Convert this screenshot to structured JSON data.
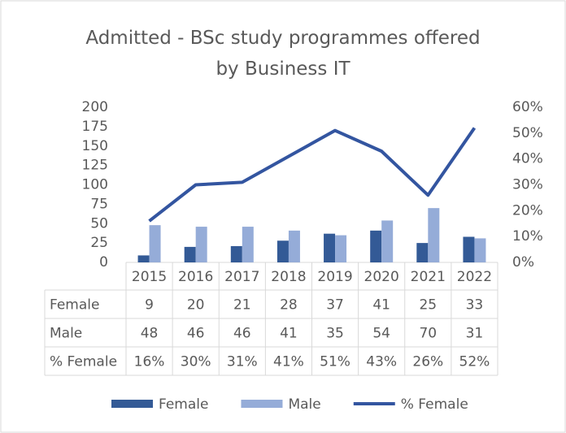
{
  "chart_data": {
    "type": "bar",
    "title": "Admitted - BSc study programmes offered by Business IT",
    "categories": [
      "2015",
      "2016",
      "2017",
      "2018",
      "2019",
      "2020",
      "2021",
      "2022"
    ],
    "series": [
      {
        "name": "Female",
        "type": "bar",
        "color": "#335a96",
        "values": [
          9,
          20,
          21,
          28,
          37,
          41,
          25,
          33
        ]
      },
      {
        "name": "Male",
        "type": "bar",
        "color": "#95acd8",
        "values": [
          48,
          46,
          46,
          41,
          35,
          54,
          70,
          31
        ]
      },
      {
        "name": "% Female",
        "type": "line",
        "axis": "y2",
        "color": "#3355a0",
        "values": [
          16,
          30,
          31,
          41,
          51,
          43,
          26,
          52
        ],
        "value_labels": [
          "16%",
          "30%",
          "31%",
          "41%",
          "51%",
          "43%",
          "26%",
          "52%"
        ]
      }
    ],
    "ylim": [
      0,
      200
    ],
    "yticks": [
      0,
      25,
      50,
      75,
      100,
      125,
      150,
      175,
      200
    ],
    "y2lim": [
      0,
      60
    ],
    "y2ticks": [
      {
        "value": 0,
        "label": "0%"
      },
      {
        "value": 10,
        "label": "10%"
      },
      {
        "value": 20,
        "label": "20%"
      },
      {
        "value": 30,
        "label": "30%"
      },
      {
        "value": 40,
        "label": "40%"
      },
      {
        "value": 50,
        "label": "50%"
      },
      {
        "value": 60,
        "label": "60%"
      }
    ],
    "grid": false,
    "legend": "bottom",
    "data_table": true
  }
}
